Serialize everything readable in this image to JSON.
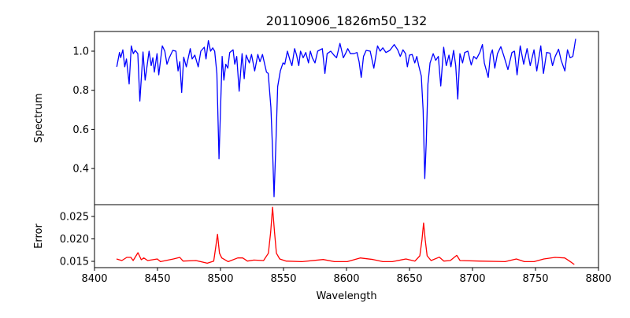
{
  "chart_data": [
    {
      "type": "line",
      "title": "20110906_1826m50_132",
      "xlabel": "",
      "ylabel": "Spectrum",
      "xlim": [
        8400,
        8800
      ],
      "ylim": [
        0.2153,
        1.1006
      ],
      "yticks": [
        0.4,
        0.6,
        0.8,
        1.0
      ],
      "ytick_labels": [
        "0.4",
        "0.6",
        "0.8",
        "1.0"
      ],
      "grid": false,
      "series": [
        {
          "name": "Spectrum",
          "color": "#0000ff",
          "points": [
            [
              8417.7,
              0.92
            ],
            [
              8419.8,
              0.993
            ],
            [
              8420.8,
              0.967
            ],
            [
              8422.5,
              1.007
            ],
            [
              8424.0,
              0.92
            ],
            [
              8425.4,
              0.96
            ],
            [
              8427.5,
              0.832
            ],
            [
              8429.2,
              1.027
            ],
            [
              8430.8,
              0.987
            ],
            [
              8432.3,
              1.004
            ],
            [
              8434.4,
              0.987
            ],
            [
              8436.0,
              0.745
            ],
            [
              8438.5,
              0.996
            ],
            [
              8440.2,
              0.852
            ],
            [
              8443.3,
              1.0
            ],
            [
              8445.0,
              0.926
            ],
            [
              8446.3,
              0.966
            ],
            [
              8447.5,
              0.893
            ],
            [
              8449.6,
              0.987
            ],
            [
              8451.0,
              0.879
            ],
            [
              8453.8,
              1.027
            ],
            [
              8455.8,
              1.0
            ],
            [
              8457.5,
              0.933
            ],
            [
              8459.4,
              0.966
            ],
            [
              8462.1,
              1.004
            ],
            [
              8464.6,
              1.0
            ],
            [
              8466.3,
              0.899
            ],
            [
              8467.7,
              0.946
            ],
            [
              8469.2,
              0.789
            ],
            [
              8470.8,
              0.969
            ],
            [
              8472.9,
              0.92
            ],
            [
              8476.0,
              1.013
            ],
            [
              8477.5,
              0.96
            ],
            [
              8479.6,
              0.98
            ],
            [
              8482.3,
              0.92
            ],
            [
              8484.4,
              1.0
            ],
            [
              8487.1,
              1.02
            ],
            [
              8488.5,
              0.96
            ],
            [
              8490.4,
              1.054
            ],
            [
              8492.1,
              1.0
            ],
            [
              8493.8,
              1.017
            ],
            [
              8495.4,
              1.0
            ],
            [
              8497.1,
              0.886
            ],
            [
              8498.8,
              0.45
            ],
            [
              8500.0,
              0.698
            ],
            [
              8501.3,
              0.973
            ],
            [
              8502.7,
              0.852
            ],
            [
              8504.2,
              0.933
            ],
            [
              8505.8,
              0.913
            ],
            [
              8507.3,
              0.993
            ],
            [
              8510.0,
              1.007
            ],
            [
              8511.3,
              0.933
            ],
            [
              8512.9,
              0.973
            ],
            [
              8514.8,
              0.795
            ],
            [
              8517.1,
              0.987
            ],
            [
              8518.8,
              0.859
            ],
            [
              8520.4,
              0.98
            ],
            [
              8522.9,
              0.94
            ],
            [
              8524.6,
              0.983
            ],
            [
              8527.1,
              0.899
            ],
            [
              8529.6,
              0.983
            ],
            [
              8531.3,
              0.946
            ],
            [
              8533.3,
              0.983
            ],
            [
              8536.5,
              0.893
            ],
            [
              8537.9,
              0.886
            ],
            [
              8540.0,
              0.712
            ],
            [
              8541.3,
              0.497
            ],
            [
              8542.5,
              0.256
            ],
            [
              8543.8,
              0.497
            ],
            [
              8545.4,
              0.819
            ],
            [
              8547.5,
              0.899
            ],
            [
              8549.6,
              0.94
            ],
            [
              8551.0,
              0.933
            ],
            [
              8553.1,
              1.0
            ],
            [
              8555.2,
              0.953
            ],
            [
              8556.7,
              0.926
            ],
            [
              8558.8,
              1.013
            ],
            [
              8560.4,
              0.98
            ],
            [
              8562.1,
              0.926
            ],
            [
              8563.5,
              1.0
            ],
            [
              8565.6,
              0.966
            ],
            [
              8567.7,
              0.993
            ],
            [
              8569.8,
              0.94
            ],
            [
              8571.3,
              1.0
            ],
            [
              8572.9,
              0.966
            ],
            [
              8575.0,
              0.94
            ],
            [
              8577.1,
              1.0
            ],
            [
              8580.8,
              1.013
            ],
            [
              8582.9,
              0.886
            ],
            [
              8584.6,
              0.987
            ],
            [
              8587.5,
              1.0
            ],
            [
              8590.0,
              0.98
            ],
            [
              8592.1,
              0.966
            ],
            [
              8594.8,
              1.04
            ],
            [
              8597.5,
              0.966
            ],
            [
              8599.6,
              0.993
            ],
            [
              8601.0,
              1.013
            ],
            [
              8603.1,
              0.987
            ],
            [
              8605.8,
              0.987
            ],
            [
              8608.3,
              0.993
            ],
            [
              8610.0,
              0.946
            ],
            [
              8611.7,
              0.866
            ],
            [
              8613.5,
              0.973
            ],
            [
              8615.6,
              1.004
            ],
            [
              8618.8,
              1.0
            ],
            [
              8621.7,
              0.913
            ],
            [
              8624.6,
              1.027
            ],
            [
              8626.7,
              1.0
            ],
            [
              8628.8,
              1.017
            ],
            [
              8631.3,
              0.993
            ],
            [
              8634.4,
              1.004
            ],
            [
              8637.9,
              1.034
            ],
            [
              8640.6,
              1.007
            ],
            [
              8642.7,
              0.973
            ],
            [
              8644.8,
              1.007
            ],
            [
              8646.9,
              0.987
            ],
            [
              8648.3,
              0.92
            ],
            [
              8650.0,
              0.98
            ],
            [
              8652.1,
              0.983
            ],
            [
              8654.2,
              0.94
            ],
            [
              8655.8,
              0.973
            ],
            [
              8657.3,
              0.926
            ],
            [
              8659.4,
              0.873
            ],
            [
              8660.8,
              0.698
            ],
            [
              8662.1,
              0.349
            ],
            [
              8663.3,
              0.537
            ],
            [
              8664.6,
              0.832
            ],
            [
              8666.3,
              0.94
            ],
            [
              8668.8,
              0.987
            ],
            [
              8670.8,
              0.953
            ],
            [
              8672.9,
              0.973
            ],
            [
              8674.8,
              0.822
            ],
            [
              8677.1,
              1.02
            ],
            [
              8679.2,
              0.926
            ],
            [
              8681.3,
              0.98
            ],
            [
              8682.9,
              0.92
            ],
            [
              8685.0,
              1.004
            ],
            [
              8686.7,
              0.926
            ],
            [
              8688.3,
              0.755
            ],
            [
              8690.0,
              0.987
            ],
            [
              8692.1,
              0.94
            ],
            [
              8693.8,
              0.993
            ],
            [
              8696.3,
              1.0
            ],
            [
              8699.0,
              0.929
            ],
            [
              8701.0,
              0.973
            ],
            [
              8703.1,
              0.96
            ],
            [
              8705.8,
              0.993
            ],
            [
              8707.9,
              1.034
            ],
            [
              8709.4,
              0.94
            ],
            [
              8712.5,
              0.866
            ],
            [
              8714.2,
              0.98
            ],
            [
              8715.8,
              1.007
            ],
            [
              8717.7,
              0.913
            ],
            [
              8719.8,
              0.987
            ],
            [
              8722.5,
              1.023
            ],
            [
              8725.0,
              0.973
            ],
            [
              8728.1,
              0.906
            ],
            [
              8731.3,
              0.993
            ],
            [
              8733.3,
              1.0
            ],
            [
              8735.4,
              0.879
            ],
            [
              8737.9,
              1.027
            ],
            [
              8740.6,
              0.933
            ],
            [
              8743.3,
              1.013
            ],
            [
              8745.8,
              0.926
            ],
            [
              8748.8,
              1.007
            ],
            [
              8751.0,
              0.899
            ],
            [
              8754.2,
              1.027
            ],
            [
              8756.3,
              0.886
            ],
            [
              8758.8,
              0.993
            ],
            [
              8761.5,
              0.99
            ],
            [
              8763.5,
              0.926
            ],
            [
              8765.6,
              0.973
            ],
            [
              8768.3,
              1.01
            ],
            [
              8770.4,
              0.953
            ],
            [
              8773.3,
              0.899
            ],
            [
              8775.4,
              1.007
            ],
            [
              8777.5,
              0.966
            ],
            [
              8779.6,
              0.973
            ],
            [
              8780.8,
              1.02
            ],
            [
              8781.9,
              1.063
            ]
          ]
        }
      ]
    },
    {
      "type": "line",
      "title": "",
      "xlabel": "Wavelength",
      "ylabel": "Error",
      "xlim": [
        8400,
        8800
      ],
      "ylim": [
        0.0136,
        0.02763
      ],
      "xticks": [
        8400,
        8450,
        8500,
        8550,
        8600,
        8650,
        8700,
        8750,
        8800
      ],
      "xtick_labels": [
        "8400",
        "8450",
        "8500",
        "8550",
        "8600",
        "8650",
        "8700",
        "8750",
        "8800"
      ],
      "yticks": [
        0.015,
        0.02,
        0.025
      ],
      "ytick_labels": [
        "0.015",
        "0.020",
        "0.025"
      ],
      "grid": false,
      "series": [
        {
          "name": "Error",
          "color": "#ff0000",
          "points": [
            [
              8417.5,
              0.01553
            ],
            [
              8421.7,
              0.01518
            ],
            [
              8425.6,
              0.01588
            ],
            [
              8428.9,
              0.01588
            ],
            [
              8430.7,
              0.01518
            ],
            [
              8434.5,
              0.01693
            ],
            [
              8437.1,
              0.01535
            ],
            [
              8439.1,
              0.01576
            ],
            [
              8442.2,
              0.01518
            ],
            [
              8449.8,
              0.01553
            ],
            [
              8452.4,
              0.01494
            ],
            [
              8462.6,
              0.01553
            ],
            [
              8467.7,
              0.01588
            ],
            [
              8470.3,
              0.01506
            ],
            [
              8480.5,
              0.01518
            ],
            [
              8489.5,
              0.01459
            ],
            [
              8494.6,
              0.01506
            ],
            [
              8496.1,
              0.01798
            ],
            [
              8497.6,
              0.02102
            ],
            [
              8499.2,
              0.01681
            ],
            [
              8501.0,
              0.01576
            ],
            [
              8506.1,
              0.01494
            ],
            [
              8513.7,
              0.01576
            ],
            [
              8517.6,
              0.01576
            ],
            [
              8521.4,
              0.01506
            ],
            [
              8526.5,
              0.01529
            ],
            [
              8534.2,
              0.01518
            ],
            [
              8538.0,
              0.01681
            ],
            [
              8539.8,
              0.02149
            ],
            [
              8541.3,
              0.02705
            ],
            [
              8542.9,
              0.02149
            ],
            [
              8544.4,
              0.01681
            ],
            [
              8547.0,
              0.01553
            ],
            [
              8552.1,
              0.01506
            ],
            [
              8564.9,
              0.01494
            ],
            [
              8581.5,
              0.01541
            ],
            [
              8590.4,
              0.01494
            ],
            [
              8600.6,
              0.01494
            ],
            [
              8610.9,
              0.01576
            ],
            [
              8621.1,
              0.01541
            ],
            [
              8628.8,
              0.01494
            ],
            [
              8636.4,
              0.01494
            ],
            [
              8647.2,
              0.01553
            ],
            [
              8654.3,
              0.01506
            ],
            [
              8658.2,
              0.01623
            ],
            [
              8659.9,
              0.01974
            ],
            [
              8661.2,
              0.02354
            ],
            [
              8662.5,
              0.01974
            ],
            [
              8664.0,
              0.01623
            ],
            [
              8667.1,
              0.01518
            ],
            [
              8673.7,
              0.01594
            ],
            [
              8677.3,
              0.01506
            ],
            [
              8682.4,
              0.01518
            ],
            [
              8687.5,
              0.01634
            ],
            [
              8690.1,
              0.01518
            ],
            [
              8705.4,
              0.01506
            ],
            [
              8725.9,
              0.01494
            ],
            [
              8734.8,
              0.01553
            ],
            [
              8741.2,
              0.01494
            ],
            [
              8748.9,
              0.01494
            ],
            [
              8756.6,
              0.01553
            ],
            [
              8765.5,
              0.01588
            ],
            [
              8773.2,
              0.01576
            ],
            [
              8777.0,
              0.01506
            ],
            [
              8780.8,
              0.0143
            ]
          ]
        }
      ]
    }
  ]
}
